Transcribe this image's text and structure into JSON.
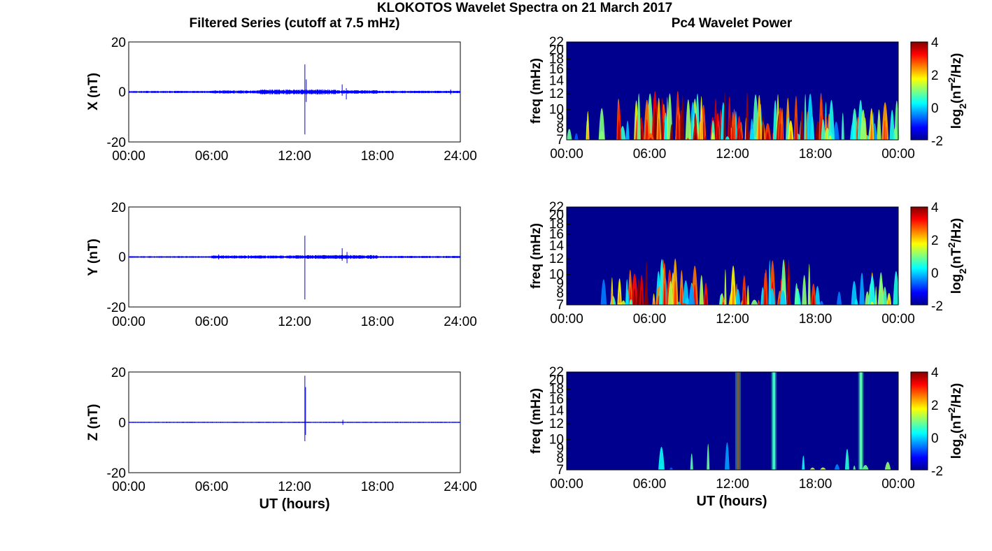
{
  "figure": {
    "title": "KLOKOTOS Wavelet Spectra on 21 March 2017",
    "left_column_title": "Filtered Series (cutoff at 7.5 mHz)",
    "right_column_title": "Pc4 Wavelet Power"
  },
  "colors": {
    "trace": "#0000ff",
    "background": "#00008f",
    "axis": "#000000"
  },
  "chart_data": [
    {
      "type": "line",
      "panel": "X",
      "ylabel": "X (nT)",
      "xlabel": "",
      "ylim": [
        -20,
        20
      ],
      "yticks": [
        "20",
        "0",
        "-20"
      ],
      "xlim_hours": [
        0,
        24
      ],
      "xticks": [
        "00:00",
        "06:00",
        "12:00",
        "18:00",
        "24:00"
      ],
      "baseline_noise_nT": 0.35,
      "noise_profile": [
        {
          "from_h": 0,
          "to_h": 6,
          "amp": 0.3
        },
        {
          "from_h": 6,
          "to_h": 9.5,
          "amp": 0.45
        },
        {
          "from_h": 9.5,
          "to_h": 15,
          "amp": 0.7
        },
        {
          "from_h": 15,
          "to_h": 18,
          "amp": 0.5
        },
        {
          "from_h": 18,
          "to_h": 24,
          "amp": 0.35
        }
      ],
      "spikes": [
        {
          "t_h": 12.75,
          "max": 11,
          "min": -17
        },
        {
          "t_h": 12.85,
          "max": 5,
          "min": -4
        },
        {
          "t_h": 15.45,
          "max": 3,
          "min": -1.5
        },
        {
          "t_h": 15.75,
          "max": 1.5,
          "min": -3
        },
        {
          "t_h": 23.3,
          "max": 1,
          "min": -1
        }
      ]
    },
    {
      "type": "line",
      "panel": "Y",
      "ylabel": "Y (nT)",
      "xlabel": "",
      "ylim": [
        -20,
        20
      ],
      "yticks": [
        "20",
        "0",
        "-20"
      ],
      "xlim_hours": [
        0,
        24
      ],
      "xticks": [
        "00:00",
        "06:00",
        "12:00",
        "18:00",
        "24:00"
      ],
      "noise_profile": [
        {
          "from_h": 0,
          "to_h": 6,
          "amp": 0.25
        },
        {
          "from_h": 6,
          "to_h": 12,
          "amp": 0.45
        },
        {
          "from_h": 12,
          "to_h": 18,
          "amp": 0.55
        },
        {
          "from_h": 18,
          "to_h": 24,
          "amp": 0.3
        }
      ],
      "spikes": [
        {
          "t_h": 12.75,
          "max": 8.5,
          "min": -17
        },
        {
          "t_h": 15.45,
          "max": 3.5,
          "min": -1.5
        },
        {
          "t_h": 15.8,
          "max": 2,
          "min": -2.5
        },
        {
          "t_h": 6.5,
          "max": 1,
          "min": -1
        }
      ]
    },
    {
      "type": "line",
      "panel": "Z",
      "ylabel": "Z (nT)",
      "xlabel": "UT (hours)",
      "ylim": [
        -20,
        20
      ],
      "yticks": [
        "20",
        "0",
        "-20"
      ],
      "xlim_hours": [
        0,
        24
      ],
      "xticks": [
        "00:00",
        "06:00",
        "12:00",
        "18:00",
        "24:00"
      ],
      "noise_profile": [
        {
          "from_h": 0,
          "to_h": 24,
          "amp": 0.15
        }
      ],
      "spikes": [
        {
          "t_h": 12.75,
          "max": 18.5,
          "min": -7.5
        },
        {
          "t_h": 12.8,
          "max": 14,
          "min": -5
        },
        {
          "t_h": 15.5,
          "max": 1,
          "min": -1
        }
      ]
    },
    {
      "type": "heatmap",
      "panel": "X-wavelet",
      "ylabel": "freq (mHz)",
      "xlabel": "",
      "ylim_mHz": [
        7,
        22
      ],
      "yticks": [
        "22",
        "20",
        "18",
        "16",
        "14",
        "12",
        "10",
        "9",
        "8",
        "7"
      ],
      "xlim_hours": [
        0,
        24
      ],
      "xticks": [
        "00:00",
        "06:00",
        "12:00",
        "18:00",
        "00:00"
      ],
      "colorbar": {
        "label": "log2(nT2/Hz)",
        "range": [
          -2,
          4
        ],
        "ticks": [
          "4",
          "2",
          "0",
          "-2"
        ]
      },
      "activity": [
        {
          "from_h": 0,
          "to_h": 2.5,
          "level": 0.15
        },
        {
          "from_h": 2.5,
          "to_h": 5,
          "level": 0.55
        },
        {
          "from_h": 5,
          "to_h": 13,
          "level": 0.95
        },
        {
          "from_h": 13,
          "to_h": 18.5,
          "level": 0.85
        },
        {
          "from_h": 18.5,
          "to_h": 24,
          "level": 0.5
        }
      ]
    },
    {
      "type": "heatmap",
      "panel": "Y-wavelet",
      "ylabel": "freq (mHz)",
      "xlabel": "",
      "ylim_mHz": [
        7,
        22
      ],
      "yticks": [
        "22",
        "20",
        "18",
        "16",
        "14",
        "12",
        "10",
        "9",
        "8",
        "7"
      ],
      "xlim_hours": [
        0,
        24
      ],
      "xticks": [
        "00:00",
        "06:00",
        "12:00",
        "18:00",
        "00:00"
      ],
      "colorbar": {
        "label": "log2(nT2/Hz)",
        "range": [
          -2,
          4
        ],
        "ticks": [
          "4",
          "2",
          "0",
          "-2"
        ]
      },
      "activity": [
        {
          "from_h": 0,
          "to_h": 3,
          "level": 0.05
        },
        {
          "from_h": 3,
          "to_h": 4.5,
          "level": 0.35
        },
        {
          "from_h": 4.5,
          "to_h": 8,
          "level": 0.85
        },
        {
          "from_h": 8,
          "to_h": 13.5,
          "level": 0.55
        },
        {
          "from_h": 13.5,
          "to_h": 18,
          "level": 0.8
        },
        {
          "from_h": 18,
          "to_h": 24,
          "level": 0.3
        }
      ]
    },
    {
      "type": "heatmap",
      "panel": "Z-wavelet",
      "ylabel": "freq (mHz)",
      "xlabel": "UT (hours)",
      "ylim_mHz": [
        7,
        22
      ],
      "yticks": [
        "22",
        "20",
        "18",
        "16",
        "14",
        "12",
        "10",
        "9",
        "8",
        "7"
      ],
      "xlim_hours": [
        0,
        24
      ],
      "xticks": [
        "00:00",
        "06:00",
        "12:00",
        "18:00",
        "00:00"
      ],
      "colorbar": {
        "label": "log2(nT2/Hz)",
        "range": [
          -2,
          4
        ],
        "ticks": [
          "4",
          "2",
          "0",
          "-2"
        ]
      },
      "activity": [
        {
          "from_h": 0,
          "to_h": 5.5,
          "level": 0.0
        },
        {
          "from_h": 5.5,
          "to_h": 8,
          "level": 0.15
        },
        {
          "from_h": 8,
          "to_h": 24,
          "level": 0.08
        }
      ],
      "ridges": [
        {
          "t_h": 12.4,
          "value": 3.9
        },
        {
          "t_h": 15.0,
          "value": 0.5
        },
        {
          "t_h": 21.3,
          "value": 0.8
        }
      ]
    }
  ]
}
